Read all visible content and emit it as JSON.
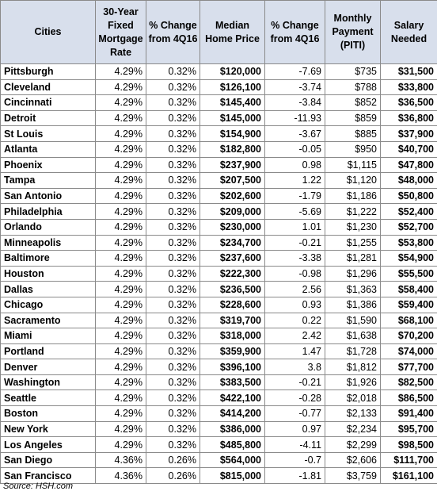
{
  "table": {
    "headers": [
      "Cities",
      "30-Year\nFixed\nMortgage\nRate",
      "% Change\nfrom 4Q16",
      "Median\nHome Price",
      "% Change\nfrom 4Q16",
      "Monthly\nPayment\n(PITI)",
      "Salary\nNeeded"
    ],
    "rows": [
      [
        "Pittsburgh",
        "4.29%",
        "0.32%",
        "$120,000",
        "-7.69",
        "$735",
        "$31,500"
      ],
      [
        "Cleveland",
        "4.29%",
        "0.32%",
        "$126,100",
        "-3.74",
        "$788",
        "$33,800"
      ],
      [
        "Cincinnati",
        "4.29%",
        "0.32%",
        "$145,400",
        "-3.84",
        "$852",
        "$36,500"
      ],
      [
        "Detroit",
        "4.29%",
        "0.32%",
        "$145,000",
        "-11.93",
        "$859",
        "$36,800"
      ],
      [
        "St Louis",
        "4.29%",
        "0.32%",
        "$154,900",
        "-3.67",
        "$885",
        "$37,900"
      ],
      [
        "Atlanta",
        "4.29%",
        "0.32%",
        "$182,800",
        "-0.05",
        "$950",
        "$40,700"
      ],
      [
        "Phoenix",
        "4.29%",
        "0.32%",
        "$237,900",
        "0.98",
        "$1,115",
        "$47,800"
      ],
      [
        "Tampa",
        "4.29%",
        "0.32%",
        "$207,500",
        "1.22",
        "$1,120",
        "$48,000"
      ],
      [
        "San Antonio",
        "4.29%",
        "0.32%",
        "$202,600",
        "-1.79",
        "$1,186",
        "$50,800"
      ],
      [
        "Philadelphia",
        "4.29%",
        "0.32%",
        "$209,000",
        "-5.69",
        "$1,222",
        "$52,400"
      ],
      [
        "Orlando",
        "4.29%",
        "0.32%",
        "$230,000",
        "1.01",
        "$1,230",
        "$52,700"
      ],
      [
        "Minneapolis",
        "4.29%",
        "0.32%",
        "$234,700",
        "-0.21",
        "$1,255",
        "$53,800"
      ],
      [
        "Baltimore",
        "4.29%",
        "0.32%",
        "$237,600",
        "-3.38",
        "$1,281",
        "$54,900"
      ],
      [
        "Houston",
        "4.29%",
        "0.32%",
        "$222,300",
        "-0.98",
        "$1,296",
        "$55,500"
      ],
      [
        "Dallas",
        "4.29%",
        "0.32%",
        "$236,500",
        "2.56",
        "$1,363",
        "$58,400"
      ],
      [
        "Chicago",
        "4.29%",
        "0.32%",
        "$228,600",
        "0.93",
        "$1,386",
        "$59,400"
      ],
      [
        "Sacramento",
        "4.29%",
        "0.32%",
        "$319,700",
        "0.22",
        "$1,590",
        "$68,100"
      ],
      [
        "Miami",
        "4.29%",
        "0.32%",
        "$318,000",
        "2.42",
        "$1,638",
        "$70,200"
      ],
      [
        "Portland",
        "4.29%",
        "0.32%",
        "$359,900",
        "1.47",
        "$1,728",
        "$74,000"
      ],
      [
        "Denver",
        "4.29%",
        "0.32%",
        "$396,100",
        "3.8",
        "$1,812",
        "$77,700"
      ],
      [
        "Washington",
        "4.29%",
        "0.32%",
        "$383,500",
        "-0.21",
        "$1,926",
        "$82,500"
      ],
      [
        "Seattle",
        "4.29%",
        "0.32%",
        "$422,100",
        "-0.28",
        "$2,018",
        "$86,500"
      ],
      [
        "Boston",
        "4.29%",
        "0.32%",
        "$414,200",
        "-0.77",
        "$2,133",
        "$91,400"
      ],
      [
        "New York",
        "4.29%",
        "0.32%",
        "$386,000",
        "0.97",
        "$2,234",
        "$95,700"
      ],
      [
        "Los Angeles",
        "4.29%",
        "0.32%",
        "$485,800",
        "-4.11",
        "$2,299",
        "$98,500"
      ],
      [
        "San Diego",
        "4.36%",
        "0.26%",
        "$564,000",
        "-0.7",
        "$2,606",
        "$111,700"
      ],
      [
        "San Francisco",
        "4.36%",
        "0.26%",
        "$815,000",
        "-1.81",
        "$3,759",
        "$161,100"
      ]
    ]
  },
  "colors": {
    "header_background": "#d8dfec",
    "grid_lines": "#8a8a8a"
  },
  "source": "Source: HSH.com"
}
